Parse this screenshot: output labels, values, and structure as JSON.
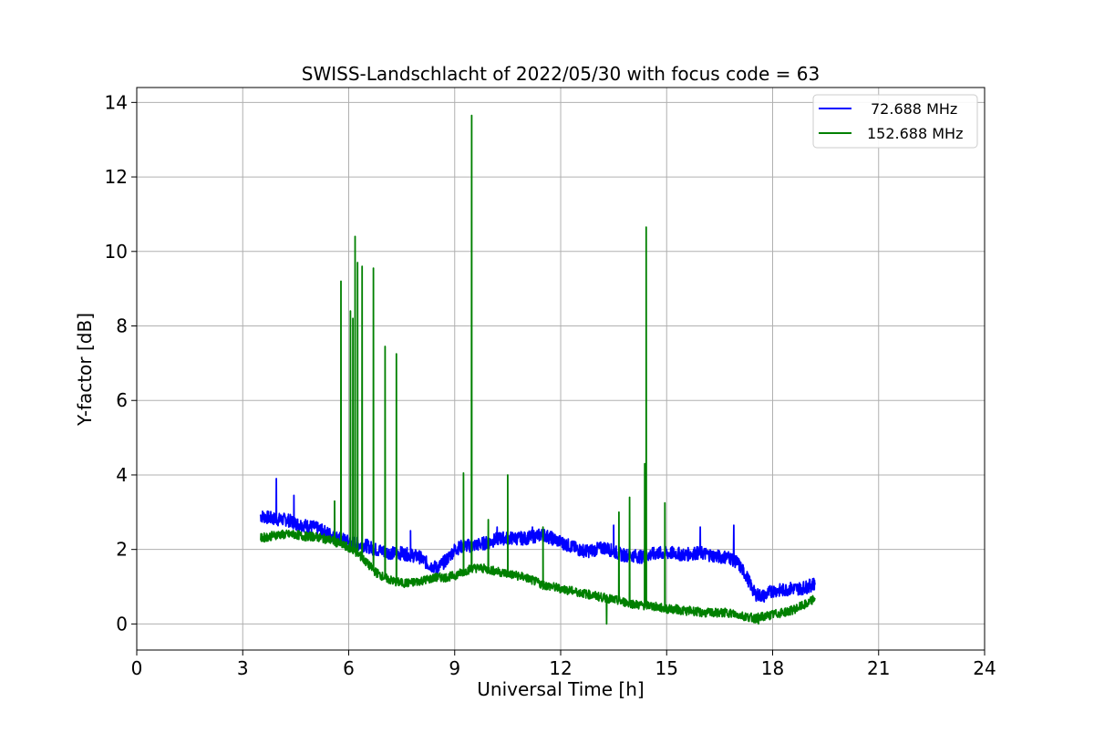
{
  "chart_data": {
    "type": "line",
    "title": "SWISS-Landschlacht of 2022/05/30 with focus code = 63",
    "xlabel": "Universal Time [h]",
    "ylabel": "Y-factor [dB]",
    "xlim": [
      0,
      24
    ],
    "ylim": [
      -0.7,
      14.4
    ],
    "xticks": [
      0,
      3,
      6,
      9,
      12,
      15,
      18,
      21,
      24
    ],
    "yticks": [
      0,
      2,
      4,
      6,
      8,
      10,
      12,
      14
    ],
    "grid": true,
    "legend_position": "top-right",
    "series": [
      {
        "name": "72.688 MHz",
        "color": "#0000ff",
        "x": [
          3.5,
          3.75,
          4.0,
          4.25,
          4.5,
          4.75,
          5.0,
          5.25,
          5.5,
          5.75,
          6.0,
          6.25,
          6.5,
          6.75,
          7.0,
          7.25,
          7.5,
          7.75,
          8.0,
          8.25,
          8.5,
          8.75,
          9.0,
          9.25,
          9.5,
          9.75,
          10.0,
          10.25,
          10.5,
          10.75,
          11.0,
          11.25,
          11.5,
          11.75,
          12.0,
          12.25,
          12.5,
          12.75,
          13.0,
          13.25,
          13.5,
          13.75,
          14.0,
          14.25,
          14.5,
          14.75,
          15.0,
          15.25,
          15.5,
          15.75,
          16.0,
          16.25,
          16.5,
          16.75,
          17.0,
          17.25,
          17.5,
          17.75,
          18.0,
          18.25,
          18.5,
          18.75,
          19.0,
          19.2
        ],
        "y": [
          2.9,
          2.85,
          2.8,
          2.8,
          2.7,
          2.65,
          2.6,
          2.5,
          2.4,
          2.3,
          2.2,
          2.15,
          2.1,
          2.0,
          1.95,
          1.9,
          1.9,
          1.85,
          1.8,
          1.6,
          1.5,
          1.7,
          2.0,
          2.1,
          2.1,
          2.15,
          2.2,
          2.3,
          2.3,
          2.3,
          2.3,
          2.35,
          2.4,
          2.3,
          2.2,
          2.1,
          2.0,
          1.95,
          2.0,
          2.05,
          1.95,
          1.85,
          1.85,
          1.8,
          1.85,
          1.9,
          1.9,
          1.9,
          1.85,
          1.9,
          1.9,
          1.85,
          1.8,
          1.8,
          1.65,
          1.3,
          0.8,
          0.75,
          0.9,
          0.9,
          0.95,
          0.95,
          1.0,
          1.1
        ],
        "peaks": [
          [
            3.95,
            3.9
          ],
          [
            4.45,
            3.45
          ],
          [
            7.75,
            2.5
          ],
          [
            10.2,
            2.6
          ],
          [
            11.2,
            2.6
          ],
          [
            13.5,
            2.65
          ],
          [
            15.95,
            2.6
          ],
          [
            16.9,
            2.65
          ]
        ]
      },
      {
        "name": "152.688 MHz",
        "color": "#008000",
        "x": [
          3.5,
          3.75,
          4.0,
          4.25,
          4.5,
          4.75,
          5.0,
          5.25,
          5.5,
          5.75,
          6.0,
          6.25,
          6.5,
          6.75,
          7.0,
          7.25,
          7.5,
          7.75,
          8.0,
          8.25,
          8.5,
          8.75,
          9.0,
          9.25,
          9.5,
          9.75,
          10.0,
          10.25,
          10.5,
          10.75,
          11.0,
          11.25,
          11.5,
          11.75,
          12.0,
          12.25,
          12.5,
          12.75,
          13.0,
          13.25,
          13.5,
          13.75,
          14.0,
          14.25,
          14.5,
          14.75,
          15.0,
          15.25,
          15.5,
          15.75,
          16.0,
          16.25,
          16.5,
          16.75,
          17.0,
          17.25,
          17.5,
          17.75,
          18.0,
          18.25,
          18.5,
          18.75,
          19.0,
          19.2
        ],
        "y": [
          2.3,
          2.35,
          2.4,
          2.4,
          2.4,
          2.35,
          2.35,
          2.3,
          2.25,
          2.15,
          2.05,
          1.9,
          1.65,
          1.4,
          1.25,
          1.15,
          1.1,
          1.1,
          1.15,
          1.2,
          1.25,
          1.25,
          1.3,
          1.4,
          1.5,
          1.5,
          1.45,
          1.4,
          1.35,
          1.3,
          1.25,
          1.15,
          1.05,
          1.0,
          0.95,
          0.9,
          0.85,
          0.8,
          0.75,
          0.7,
          0.65,
          0.6,
          0.55,
          0.5,
          0.5,
          0.45,
          0.4,
          0.4,
          0.35,
          0.35,
          0.3,
          0.3,
          0.3,
          0.3,
          0.25,
          0.2,
          0.15,
          0.2,
          0.25,
          0.3,
          0.35,
          0.45,
          0.55,
          0.7
        ],
        "peaks": [
          [
            5.6,
            3.3
          ],
          [
            5.78,
            9.2
          ],
          [
            6.05,
            8.4
          ],
          [
            6.12,
            8.2
          ],
          [
            6.18,
            10.4
          ],
          [
            6.25,
            9.7
          ],
          [
            6.38,
            9.6
          ],
          [
            6.7,
            9.55
          ],
          [
            7.03,
            7.45
          ],
          [
            7.35,
            7.25
          ],
          [
            9.25,
            4.05
          ],
          [
            9.48,
            13.65
          ],
          [
            9.95,
            2.8
          ],
          [
            10.5,
            4.0
          ],
          [
            11.5,
            2.6
          ],
          [
            13.65,
            3.0
          ],
          [
            13.95,
            3.4
          ],
          [
            14.38,
            4.3
          ],
          [
            14.42,
            10.65
          ],
          [
            14.95,
            3.25
          ],
          [
            13.3,
            0.0
          ],
          [
            17.6,
            0.0
          ]
        ]
      }
    ]
  }
}
